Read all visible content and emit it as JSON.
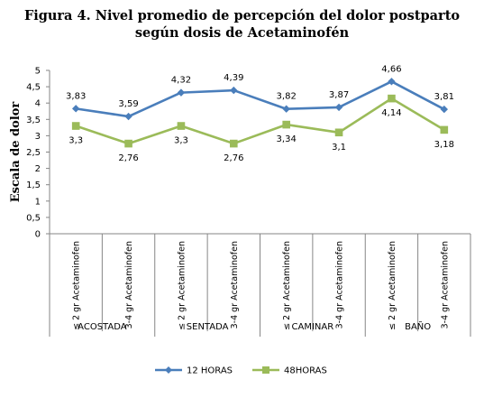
{
  "chart_data": {
    "type": "line",
    "title": "Figura 4. Nivel promedio de percepción del dolor postparto",
    "subtitle": "según dosis de Acetaminofén",
    "ylabel": "Escala de dolor",
    "xlabel": "",
    "ylim": [
      0,
      5
    ],
    "ytick_step": 0.5,
    "yticks": [
      "0",
      "0,5",
      "1",
      "1,5",
      "2",
      "2,5",
      "3",
      "3,5",
      "4",
      "4,5",
      "5"
    ],
    "grid": false,
    "legend_position": "bottom",
    "categories": [
      "≤ 2 gr Acetaminofen",
      "3-4 gr Acetaminofen",
      "≤ 2 gr Acetaminofen",
      "3-4 gr Acetaminofen",
      "≤ 2 gr Acetaminofen",
      "3-4 gr Acetaminofen",
      "≤ 2 gr Acetaminofen",
      "3-4 gr Acetaminofen"
    ],
    "groups": [
      "ACOSTADA",
      "SENTADA",
      "CAMINAR",
      "BAÑO"
    ],
    "series": [
      {
        "name": "12 HORAS",
        "color": "#4A7EBB",
        "marker": "diamond",
        "values": [
          3.83,
          3.59,
          4.32,
          4.39,
          3.82,
          3.87,
          4.66,
          3.81
        ],
        "labels": [
          "3,83",
          "3,59",
          "4,32",
          "4,39",
          "3,82",
          "3,87",
          "4,66",
          "3,81"
        ]
      },
      {
        "name": "48HORAS",
        "color": "#9BBB59",
        "marker": "square",
        "values": [
          3.3,
          2.76,
          3.3,
          2.76,
          3.34,
          3.1,
          4.14,
          3.18
        ],
        "labels": [
          "3,3",
          "2,76",
          "3,3",
          "2,76",
          "3,34",
          "3,1",
          "4,14",
          "3,18"
        ]
      }
    ]
  }
}
